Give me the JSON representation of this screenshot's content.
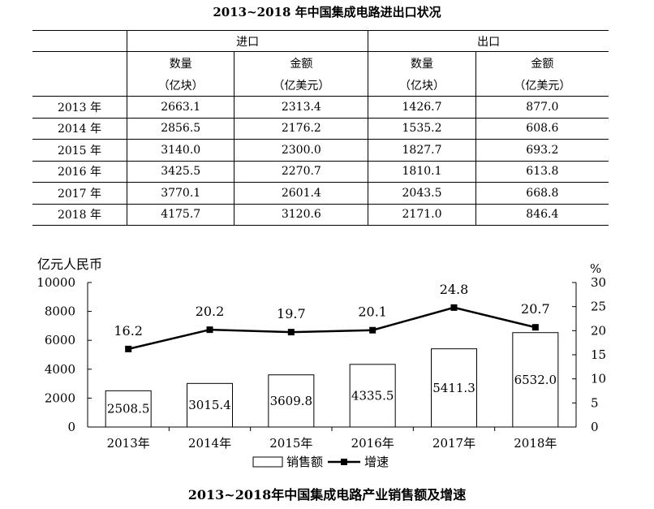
{
  "table": {
    "title": "2013~2018 年中国集成电路进出口状况",
    "groups": [
      "进口",
      "出口"
    ],
    "sub_headers": [
      {
        "name": "数量",
        "unit": "（亿块）"
      },
      {
        "name": "金额",
        "unit": "（亿美元）"
      },
      {
        "name": "数量",
        "unit": "（亿块）"
      },
      {
        "name": "金额",
        "unit": "（亿美元）"
      }
    ],
    "rows": [
      {
        "year": "2013 年",
        "values": [
          "2663.1",
          "2313.4",
          "1426.7",
          "877.0"
        ]
      },
      {
        "year": "2014 年",
        "values": [
          "2856.5",
          "2176.2",
          "1535.2",
          "608.6"
        ]
      },
      {
        "year": "2015 年",
        "values": [
          "3140.0",
          "2300.0",
          "1827.7",
          "693.2"
        ]
      },
      {
        "year": "2016 年",
        "values": [
          "3425.5",
          "2270.7",
          "1810.1",
          "613.8"
        ]
      },
      {
        "year": "2017 年",
        "values": [
          "3770.1",
          "2601.4",
          "2043.5",
          "668.8"
        ]
      },
      {
        "year": "2018 年",
        "values": [
          "4175.7",
          "3120.6",
          "2171.0",
          "846.4"
        ]
      }
    ]
  },
  "chart_data": {
    "type": "bar",
    "title": "2013~2018年中国集成电路产业销售额及增速",
    "categories": [
      "2013年",
      "2014年",
      "2015年",
      "2016年",
      "2017年",
      "2018年"
    ],
    "y_left": {
      "label": "亿元人民币",
      "range": [
        0,
        10000
      ],
      "ticks": [
        0,
        2000,
        4000,
        6000,
        8000,
        10000
      ]
    },
    "y_right": {
      "label": "%",
      "range": [
        0,
        30
      ],
      "ticks": [
        0,
        5,
        10,
        15,
        20,
        25,
        30
      ]
    },
    "series": [
      {
        "name": "销售额",
        "kind": "bar",
        "axis": "left",
        "color": "#ffffff",
        "values": [
          2508.5,
          3015.4,
          3609.8,
          4335.5,
          5411.3,
          6532.0
        ],
        "labels": [
          "2508.5",
          "3015.4",
          "3609.8",
          "4335.5",
          "5411.3",
          "6532.0"
        ]
      },
      {
        "name": "增速",
        "kind": "line",
        "axis": "right",
        "color": "#000000",
        "values": [
          16.2,
          20.2,
          19.7,
          20.1,
          24.8,
          20.7
        ],
        "labels": [
          "16.2",
          "20.2",
          "19.7",
          "20.1",
          "24.8",
          "20.7"
        ]
      }
    ],
    "legend_position": "bottom",
    "grid": false
  }
}
